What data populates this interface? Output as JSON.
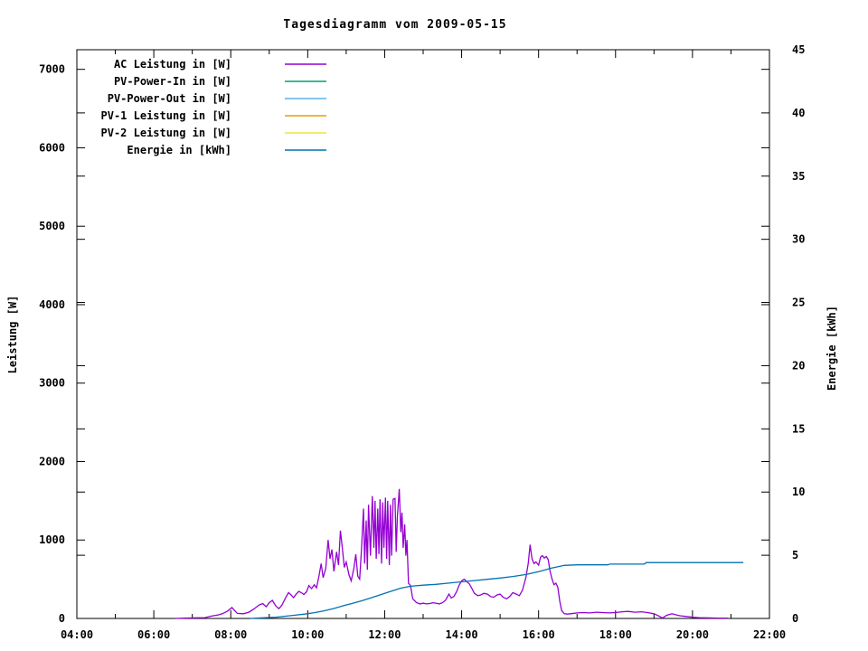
{
  "window": {
    "background": "#ffffff",
    "foreground": "#000000"
  },
  "chart_data": {
    "type": "line",
    "title": "Tagesdiagramm vom 2009-05-15",
    "x_axis": {
      "range": [
        4,
        22
      ],
      "tick_values": [
        4,
        6,
        8,
        10,
        12,
        14,
        16,
        18,
        20,
        22
      ],
      "tick_labels": [
        "04:00",
        "06:00",
        "08:00",
        "10:00",
        "12:00",
        "14:00",
        "16:00",
        "18:00",
        "20:00",
        "22:00"
      ],
      "minor_tick_step": 1
    },
    "y_left": {
      "label": "Leistung [W]",
      "range": [
        0,
        7250
      ],
      "tick_values": [
        0,
        1000,
        2000,
        3000,
        4000,
        5000,
        6000,
        7000
      ],
      "tick_labels": [
        "0",
        "1000",
        "2000",
        "3000",
        "4000",
        "5000",
        "6000",
        "7000"
      ]
    },
    "y_right": {
      "label": "Energie [kWh]",
      "range": [
        0,
        45
      ],
      "tick_values": [
        0,
        5,
        10,
        15,
        20,
        25,
        30,
        35,
        40,
        45
      ],
      "tick_labels": [
        "0",
        "5",
        "10",
        "15",
        "20",
        "25",
        "30",
        "35",
        "40",
        "45"
      ]
    },
    "legend": {
      "position": "top-left-inside",
      "entries": [
        {
          "label": "AC Leistung in [W]",
          "color": "#9400d3"
        },
        {
          "label": "PV-Power-In in [W]",
          "color": "#009e73"
        },
        {
          "label": "PV-Power-Out in [W]",
          "color": "#56b4e9"
        },
        {
          "label": "PV-1 Leistung in [W]",
          "color": "#e69f00"
        },
        {
          "label": "PV-2 Leistung in [W]",
          "color": "#f0e442"
        },
        {
          "label": "Energie in [kWh]",
          "color": "#0072b2"
        }
      ]
    },
    "grid": false,
    "series": [
      {
        "name": "AC Leistung in [W]",
        "axis": "left",
        "color": "#9400d3",
        "points": [
          [
            6.55,
            0
          ],
          [
            6.8,
            5
          ],
          [
            7.1,
            8
          ],
          [
            7.33,
            10
          ],
          [
            7.5,
            30
          ],
          [
            7.67,
            45
          ],
          [
            7.78,
            60
          ],
          [
            7.92,
            95
          ],
          [
            8.03,
            140
          ],
          [
            8.1,
            100
          ],
          [
            8.17,
            65
          ],
          [
            8.33,
            60
          ],
          [
            8.47,
            80
          ],
          [
            8.6,
            120
          ],
          [
            8.73,
            170
          ],
          [
            8.83,
            190
          ],
          [
            8.92,
            150
          ],
          [
            9.0,
            200
          ],
          [
            9.08,
            230
          ],
          [
            9.17,
            160
          ],
          [
            9.25,
            125
          ],
          [
            9.33,
            170
          ],
          [
            9.42,
            260
          ],
          [
            9.5,
            330
          ],
          [
            9.57,
            300
          ],
          [
            9.63,
            265
          ],
          [
            9.7,
            310
          ],
          [
            9.77,
            345
          ],
          [
            9.83,
            330
          ],
          [
            9.9,
            305
          ],
          [
            9.97,
            340
          ],
          [
            10.03,
            420
          ],
          [
            10.1,
            380
          ],
          [
            10.17,
            430
          ],
          [
            10.23,
            390
          ],
          [
            10.3,
            560
          ],
          [
            10.35,
            700
          ],
          [
            10.4,
            520
          ],
          [
            10.47,
            640
          ],
          [
            10.53,
            1000
          ],
          [
            10.58,
            760
          ],
          [
            10.63,
            880
          ],
          [
            10.68,
            600
          ],
          [
            10.75,
            850
          ],
          [
            10.8,
            680
          ],
          [
            10.85,
            1120
          ],
          [
            10.9,
            900
          ],
          [
            10.95,
            650
          ],
          [
            11.0,
            720
          ],
          [
            11.07,
            560
          ],
          [
            11.13,
            480
          ],
          [
            11.2,
            640
          ],
          [
            11.25,
            820
          ],
          [
            11.3,
            540
          ],
          [
            11.35,
            500
          ],
          [
            11.4,
            900
          ],
          [
            11.45,
            1400
          ],
          [
            11.48,
            700
          ],
          [
            11.52,
            1250
          ],
          [
            11.55,
            620
          ],
          [
            11.58,
            1450
          ],
          [
            11.63,
            800
          ],
          [
            11.68,
            1560
          ],
          [
            11.72,
            900
          ],
          [
            11.75,
            1500
          ],
          [
            11.78,
            760
          ],
          [
            11.82,
            1400
          ],
          [
            11.85,
            820
          ],
          [
            11.88,
            1520
          ],
          [
            11.92,
            700
          ],
          [
            11.95,
            1480
          ],
          [
            11.98,
            900
          ],
          [
            12.02,
            1540
          ],
          [
            12.05,
            760
          ],
          [
            12.08,
            1500
          ],
          [
            12.12,
            680
          ],
          [
            12.15,
            1450
          ],
          [
            12.18,
            800
          ],
          [
            12.22,
            1520
          ],
          [
            12.27,
            1530
          ],
          [
            12.3,
            850
          ],
          [
            12.33,
            1300
          ],
          [
            12.38,
            1650
          ],
          [
            12.42,
            1100
          ],
          [
            12.45,
            1350
          ],
          [
            12.48,
            900
          ],
          [
            12.52,
            1200
          ],
          [
            12.55,
            800
          ],
          [
            12.58,
            1000
          ],
          [
            12.62,
            450
          ],
          [
            12.67,
            420
          ],
          [
            12.73,
            250
          ],
          [
            12.83,
            200
          ],
          [
            12.92,
            185
          ],
          [
            13.0,
            195
          ],
          [
            13.08,
            185
          ],
          [
            13.17,
            190
          ],
          [
            13.25,
            200
          ],
          [
            13.33,
            195
          ],
          [
            13.42,
            185
          ],
          [
            13.5,
            200
          ],
          [
            13.58,
            230
          ],
          [
            13.67,
            310
          ],
          [
            13.73,
            260
          ],
          [
            13.8,
            280
          ],
          [
            13.87,
            340
          ],
          [
            13.93,
            420
          ],
          [
            14.0,
            480
          ],
          [
            14.07,
            500
          ],
          [
            14.13,
            470
          ],
          [
            14.2,
            440
          ],
          [
            14.27,
            380
          ],
          [
            14.33,
            320
          ],
          [
            14.42,
            290
          ],
          [
            14.5,
            300
          ],
          [
            14.58,
            320
          ],
          [
            14.67,
            310
          ],
          [
            14.75,
            280
          ],
          [
            14.83,
            270
          ],
          [
            14.92,
            300
          ],
          [
            15.0,
            310
          ],
          [
            15.08,
            270
          ],
          [
            15.17,
            250
          ],
          [
            15.25,
            280
          ],
          [
            15.33,
            330
          ],
          [
            15.42,
            310
          ],
          [
            15.5,
            290
          ],
          [
            15.58,
            360
          ],
          [
            15.67,
            520
          ],
          [
            15.73,
            700
          ],
          [
            15.78,
            940
          ],
          [
            15.83,
            760
          ],
          [
            15.88,
            700
          ],
          [
            15.93,
            720
          ],
          [
            16.0,
            680
          ],
          [
            16.05,
            780
          ],
          [
            16.1,
            800
          ],
          [
            16.15,
            770
          ],
          [
            16.2,
            790
          ],
          [
            16.25,
            750
          ],
          [
            16.3,
            600
          ],
          [
            16.35,
            500
          ],
          [
            16.4,
            430
          ],
          [
            16.45,
            450
          ],
          [
            16.5,
            400
          ],
          [
            16.55,
            220
          ],
          [
            16.6,
            100
          ],
          [
            16.67,
            60
          ],
          [
            16.75,
            55
          ],
          [
            16.83,
            60
          ],
          [
            17.0,
            70
          ],
          [
            17.17,
            75
          ],
          [
            17.33,
            70
          ],
          [
            17.5,
            80
          ],
          [
            17.67,
            75
          ],
          [
            17.83,
            70
          ],
          [
            18.0,
            75
          ],
          [
            18.17,
            85
          ],
          [
            18.33,
            90
          ],
          [
            18.5,
            80
          ],
          [
            18.67,
            85
          ],
          [
            18.83,
            75
          ],
          [
            19.0,
            60
          ],
          [
            19.13,
            30
          ],
          [
            19.22,
            5
          ],
          [
            19.33,
            40
          ],
          [
            19.47,
            60
          ],
          [
            19.55,
            50
          ],
          [
            19.67,
            35
          ],
          [
            19.83,
            25
          ],
          [
            20.0,
            15
          ],
          [
            20.17,
            10
          ],
          [
            20.33,
            8
          ],
          [
            20.67,
            5
          ],
          [
            20.92,
            3
          ]
        ]
      },
      {
        "name": "PV-Power-In in [W]",
        "axis": "left",
        "color": "#009e73",
        "points": []
      },
      {
        "name": "PV-Power-Out in [W]",
        "axis": "left",
        "color": "#56b4e9",
        "points": []
      },
      {
        "name": "PV-1 Leistung in [W]",
        "axis": "left",
        "color": "#e69f00",
        "points": []
      },
      {
        "name": "PV-2 Leistung in [W]",
        "axis": "left",
        "color": "#f0e442",
        "points": []
      },
      {
        "name": "Energie in [kWh]",
        "axis": "right",
        "color": "#0072b2",
        "points": [
          [
            8.5,
            0
          ],
          [
            8.83,
            0.05
          ],
          [
            9.17,
            0.1
          ],
          [
            9.42,
            0.18
          ],
          [
            9.67,
            0.26
          ],
          [
            9.92,
            0.34
          ],
          [
            10.17,
            0.46
          ],
          [
            10.42,
            0.6
          ],
          [
            10.67,
            0.78
          ],
          [
            10.92,
            1.0
          ],
          [
            11.17,
            1.2
          ],
          [
            11.42,
            1.42
          ],
          [
            11.67,
            1.65
          ],
          [
            11.92,
            1.9
          ],
          [
            12.17,
            2.15
          ],
          [
            12.42,
            2.4
          ],
          [
            12.67,
            2.55
          ],
          [
            13.0,
            2.63
          ],
          [
            13.33,
            2.7
          ],
          [
            13.67,
            2.8
          ],
          [
            14.0,
            2.9
          ],
          [
            14.33,
            3.0
          ],
          [
            14.67,
            3.1
          ],
          [
            15.0,
            3.2
          ],
          [
            15.33,
            3.32
          ],
          [
            15.67,
            3.48
          ],
          [
            16.0,
            3.7
          ],
          [
            16.33,
            3.98
          ],
          [
            16.67,
            4.2
          ],
          [
            17.0,
            4.24
          ],
          [
            17.8,
            4.24
          ],
          [
            17.85,
            4.3
          ],
          [
            18.75,
            4.3
          ],
          [
            18.8,
            4.42
          ],
          [
            19.5,
            4.42
          ],
          [
            20.5,
            4.42
          ],
          [
            21.32,
            4.42
          ]
        ]
      }
    ]
  }
}
